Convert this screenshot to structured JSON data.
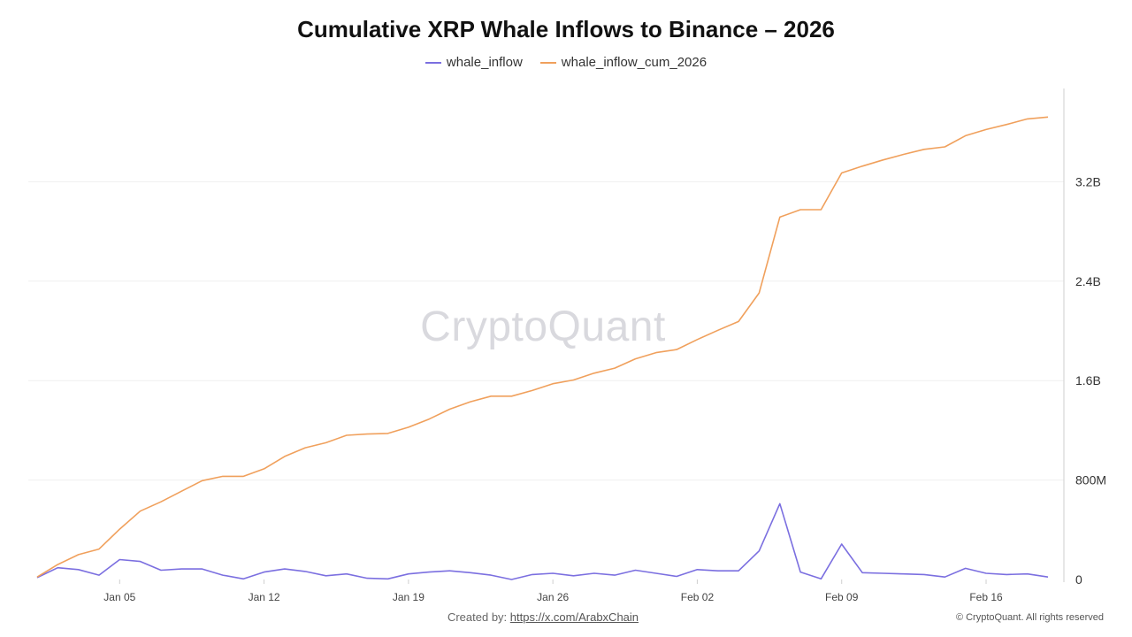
{
  "chart_data": {
    "type": "line",
    "title": "Cumulative XRP Whale Inflows to Binance – 2026",
    "x_tick_labels": [
      "Jan 05",
      "Jan 12",
      "Jan 19",
      "Jan 26",
      "Feb 02",
      "Feb 09",
      "Feb 16"
    ],
    "y_tick_labels": [
      "0",
      "800M",
      "1.6B",
      "2.4B",
      "3.2B"
    ],
    "y_ticks": [
      0,
      800000000,
      1600000000,
      2400000000,
      3200000000
    ],
    "ylim": [
      0,
      3950000000
    ],
    "x_dates": [
      "2026-01-01",
      "2026-01-02",
      "2026-01-03",
      "2026-01-04",
      "2026-01-05",
      "2026-01-06",
      "2026-01-07",
      "2026-01-08",
      "2026-01-09",
      "2026-01-10",
      "2026-01-11",
      "2026-01-12",
      "2026-01-13",
      "2026-01-14",
      "2026-01-15",
      "2026-01-16",
      "2026-01-17",
      "2026-01-18",
      "2026-01-19",
      "2026-01-20",
      "2026-01-21",
      "2026-01-22",
      "2026-01-23",
      "2026-01-24",
      "2026-01-25",
      "2026-01-26",
      "2026-01-27",
      "2026-01-28",
      "2026-01-29",
      "2026-01-30",
      "2026-01-31",
      "2026-02-01",
      "2026-02-02",
      "2026-02-03",
      "2026-02-04",
      "2026-02-05",
      "2026-02-06",
      "2026-02-07",
      "2026-02-08",
      "2026-02-09",
      "2026-02-10",
      "2026-02-11",
      "2026-02-12",
      "2026-02-13",
      "2026-02-14",
      "2026-02-15",
      "2026-02-16",
      "2026-02-17",
      "2026-02-18",
      "2026-02-19"
    ],
    "grid": "horizontal",
    "legend_position": "top",
    "y_axis_position": "right",
    "series": [
      {
        "name": "whale_inflow",
        "color": "#7b6fe0",
        "values": [
          15000000,
          95000000,
          80000000,
          35000000,
          160000000,
          145000000,
          75000000,
          85000000,
          85000000,
          35000000,
          5000000,
          60000000,
          85000000,
          65000000,
          30000000,
          45000000,
          10000000,
          5000000,
          45000000,
          60000000,
          70000000,
          55000000,
          35000000,
          0,
          40000000,
          50000000,
          30000000,
          50000000,
          35000000,
          75000000,
          50000000,
          25000000,
          80000000,
          70000000,
          70000000,
          230000000,
          610000000,
          60000000,
          5000000,
          285000000,
          55000000,
          50000000,
          45000000,
          40000000,
          20000000,
          90000000,
          50000000,
          40000000,
          45000000,
          20000000
        ]
      },
      {
        "name": "whale_inflow_cum_2026",
        "color": "#f0a05c",
        "values": [
          20000000,
          120000000,
          200000000,
          245000000,
          405000000,
          550000000,
          625000000,
          710000000,
          795000000,
          830000000,
          830000000,
          890000000,
          990000000,
          1060000000,
          1100000000,
          1160000000,
          1170000000,
          1175000000,
          1225000000,
          1290000000,
          1370000000,
          1430000000,
          1475000000,
          1475000000,
          1520000000,
          1575000000,
          1605000000,
          1660000000,
          1700000000,
          1775000000,
          1825000000,
          1850000000,
          1930000000,
          2005000000,
          2075000000,
          2305000000,
          2915000000,
          2975000000,
          2975000000,
          3270000000,
          3325000000,
          3375000000,
          3420000000,
          3460000000,
          3480000000,
          3570000000,
          3620000000,
          3660000000,
          3705000000,
          3720000000
        ]
      }
    ]
  },
  "watermark": "CryptoQuant",
  "footer": {
    "created_by_label": "Created by:",
    "created_by_link": "https://x.com/ArabxChain",
    "copyright": "© CryptoQuant. All rights reserved"
  }
}
